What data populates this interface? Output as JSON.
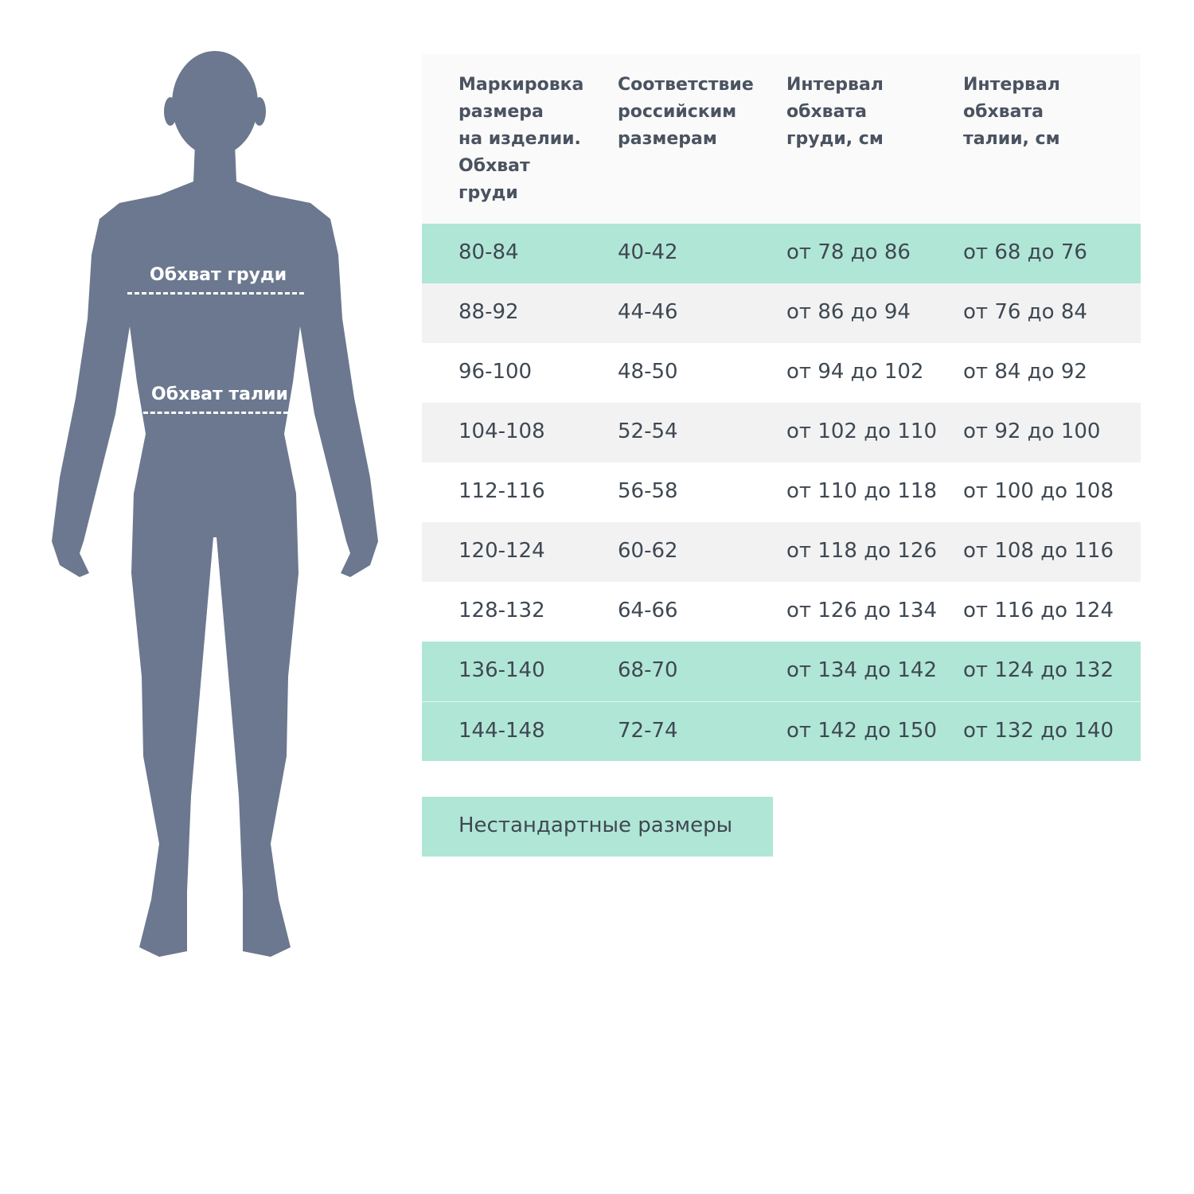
{
  "figure": {
    "chest_label": "Обхват груди",
    "waist_label": "Обхват талии",
    "silhouette_color": "#6b788f"
  },
  "table": {
    "headers": [
      "Маркировка\nразмера\nна изделии.\nОбхват\nгруди",
      "Соответствие\nроссийским\nразмерам",
      "Интервал\nобхвата\nгруди, см",
      "Интервал\nобхвата\nталии, см"
    ],
    "rows": [
      {
        "style": "teal",
        "cells": [
          "80-84",
          "40-42",
          "от 78 до 86",
          "от 68 до 76"
        ]
      },
      {
        "style": "gray",
        "cells": [
          "88-92",
          "44-46",
          "от 86 до 94",
          "от 76 до 84"
        ]
      },
      {
        "style": "white",
        "cells": [
          "96-100",
          "48-50",
          "от 94 до 102",
          "от 84 до 92"
        ]
      },
      {
        "style": "gray",
        "cells": [
          "104-108",
          "52-54",
          "от 102 до 110",
          "от 92 до 100"
        ]
      },
      {
        "style": "white",
        "cells": [
          "112-116",
          "56-58",
          "от 110 до 118",
          "от 100 до 108"
        ]
      },
      {
        "style": "gray",
        "cells": [
          "120-124",
          "60-62",
          "от 118 до 126",
          "от 108 до 116"
        ]
      },
      {
        "style": "white",
        "cells": [
          "128-132",
          "64-66",
          "от 126 до 134",
          "от 116 до 124"
        ]
      },
      {
        "style": "teal",
        "cells": [
          "136-140",
          "68-70",
          "от 134 до 142",
          "от 124 до 132"
        ]
      },
      {
        "style": "teal",
        "cells": [
          "144-148",
          "72-74",
          "от 142 до 150",
          "от 132 до 140"
        ]
      }
    ],
    "colors": {
      "highlight": "#b0e6d6",
      "stripe": "#f2f2f2",
      "header_bg": "#fafafa"
    }
  },
  "nonstandard_label": "Нестандартные размеры"
}
